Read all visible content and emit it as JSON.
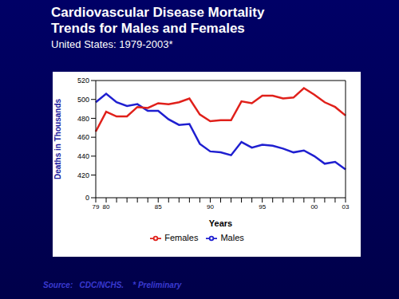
{
  "chart_data": {
    "type": "line",
    "title": "Cardiovascular Disease Mortality",
    "subtitle": "Trends  for Males and Females",
    "subtitle2": "United States: 1979-2003*",
    "source": "Source:   CDC/NCHS.    * Preliminary",
    "x_label": "Years",
    "y_label": "Deaths in Thousands",
    "categories": [
      "79",
      "80",
      null,
      null,
      null,
      null,
      "85",
      null,
      null,
      null,
      null,
      "90",
      null,
      null,
      null,
      null,
      "95",
      null,
      null,
      null,
      null,
      "00",
      null,
      null,
      "03"
    ],
    "series": [
      {
        "name": "Males",
        "color": "#1f1fd0",
        "values": [
          497,
          506,
          497,
          493,
          495,
          488,
          488,
          479,
          473,
          474,
          453,
          445,
          444,
          441,
          455,
          449,
          452,
          451,
          448,
          444,
          446,
          440,
          432,
          434,
          426
        ]
      },
      {
        "name": "Females",
        "color": "#e0201a",
        "values": [
          466,
          487,
          482,
          482,
          492,
          491,
          496,
          495,
          497,
          501,
          484,
          477,
          478,
          478,
          498,
          496,
          504,
          504,
          501,
          502,
          512,
          505,
          497,
          492,
          483
        ]
      }
    ],
    "ylim": [
      0,
      520
    ],
    "yticks": [
      0,
      420,
      440,
      460,
      480,
      500,
      520
    ],
    "grid": false,
    "legend": "bottom"
  }
}
